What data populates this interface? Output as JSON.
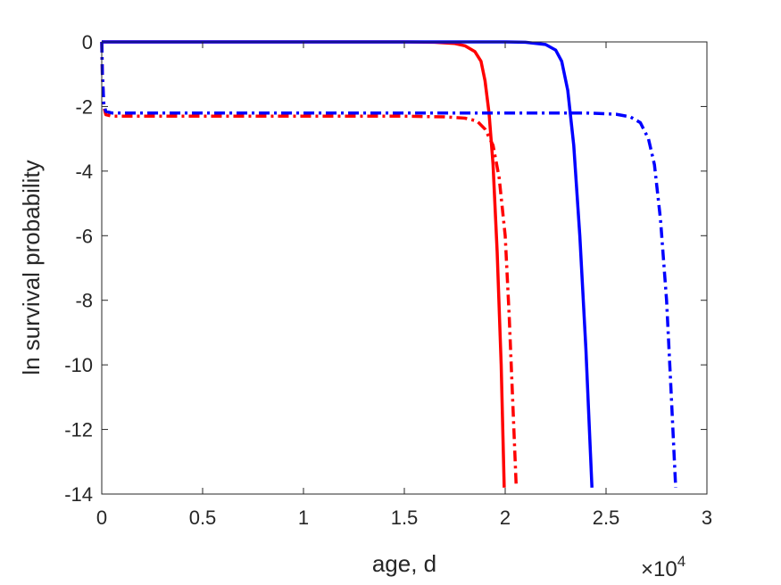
{
  "chart_data": {
    "type": "line",
    "title": "",
    "xlabel": "age, d",
    "ylabel": "ln survival probability",
    "x_exponent_label": {
      "base": "×10",
      "power": "4"
    },
    "x_scale_factor": 10000,
    "xlim": [
      0,
      3
    ],
    "ylim": [
      -14,
      0
    ],
    "xticks": [
      0,
      0.5,
      1,
      1.5,
      2,
      2.5,
      3
    ],
    "xtick_labels": [
      "0",
      "0.5",
      "1",
      "1.5",
      "2",
      "2.5",
      "3"
    ],
    "yticks": [
      0,
      -2,
      -4,
      -6,
      -8,
      -10,
      -12,
      -14
    ],
    "ytick_labels": [
      "0",
      "-2",
      "-4",
      "-6",
      "-8",
      "-10",
      "-12",
      "-14"
    ],
    "grid": false,
    "series": [
      {
        "color": "#ff0000",
        "style": "solid",
        "points": [
          [
            0,
            0
          ],
          [
            0.5,
            0
          ],
          [
            1.0,
            0
          ],
          [
            1.5,
            0
          ],
          [
            1.65,
            -0.01
          ],
          [
            1.75,
            -0.05
          ],
          [
            1.8,
            -0.12
          ],
          [
            1.85,
            -0.3
          ],
          [
            1.88,
            -0.6
          ],
          [
            1.9,
            -1.2
          ],
          [
            1.92,
            -2.2
          ],
          [
            1.94,
            -3.8
          ],
          [
            1.96,
            -6.5
          ],
          [
            1.98,
            -10.0
          ],
          [
            1.995,
            -13.8
          ]
        ]
      },
      {
        "color": "#ff0000",
        "style": "dashdot",
        "points": [
          [
            0,
            0
          ],
          [
            0.003,
            -1.0
          ],
          [
            0.01,
            -2.0
          ],
          [
            0.02,
            -2.25
          ],
          [
            0.05,
            -2.3
          ],
          [
            0.5,
            -2.3
          ],
          [
            1.0,
            -2.3
          ],
          [
            1.5,
            -2.3
          ],
          [
            1.7,
            -2.32
          ],
          [
            1.8,
            -2.36
          ],
          [
            1.86,
            -2.45
          ],
          [
            1.9,
            -2.7
          ],
          [
            1.94,
            -3.2
          ],
          [
            1.97,
            -4.2
          ],
          [
            2.0,
            -6.0
          ],
          [
            2.02,
            -8.5
          ],
          [
            2.04,
            -11.5
          ],
          [
            2.055,
            -13.8
          ]
        ]
      },
      {
        "color": "#0000ff",
        "style": "solid",
        "points": [
          [
            0,
            0
          ],
          [
            0.5,
            0
          ],
          [
            1.0,
            0
          ],
          [
            1.5,
            0
          ],
          [
            2.0,
            0
          ],
          [
            2.1,
            -0.01
          ],
          [
            2.2,
            -0.08
          ],
          [
            2.25,
            -0.25
          ],
          [
            2.28,
            -0.6
          ],
          [
            2.31,
            -1.5
          ],
          [
            2.34,
            -3.2
          ],
          [
            2.37,
            -6.0
          ],
          [
            2.4,
            -9.5
          ],
          [
            2.43,
            -13.8
          ]
        ]
      },
      {
        "color": "#0000ff",
        "style": "dashdot",
        "points": [
          [
            0,
            0
          ],
          [
            0.003,
            -1.0
          ],
          [
            0.01,
            -1.9
          ],
          [
            0.02,
            -2.15
          ],
          [
            0.05,
            -2.2
          ],
          [
            0.5,
            -2.2
          ],
          [
            1.0,
            -2.2
          ],
          [
            1.5,
            -2.2
          ],
          [
            2.0,
            -2.2
          ],
          [
            2.4,
            -2.2
          ],
          [
            2.55,
            -2.24
          ],
          [
            2.62,
            -2.32
          ],
          [
            2.67,
            -2.5
          ],
          [
            2.71,
            -3.0
          ],
          [
            2.74,
            -3.8
          ],
          [
            2.77,
            -5.5
          ],
          [
            2.8,
            -8.0
          ],
          [
            2.82,
            -10.5
          ],
          [
            2.845,
            -13.8
          ]
        ]
      }
    ]
  }
}
